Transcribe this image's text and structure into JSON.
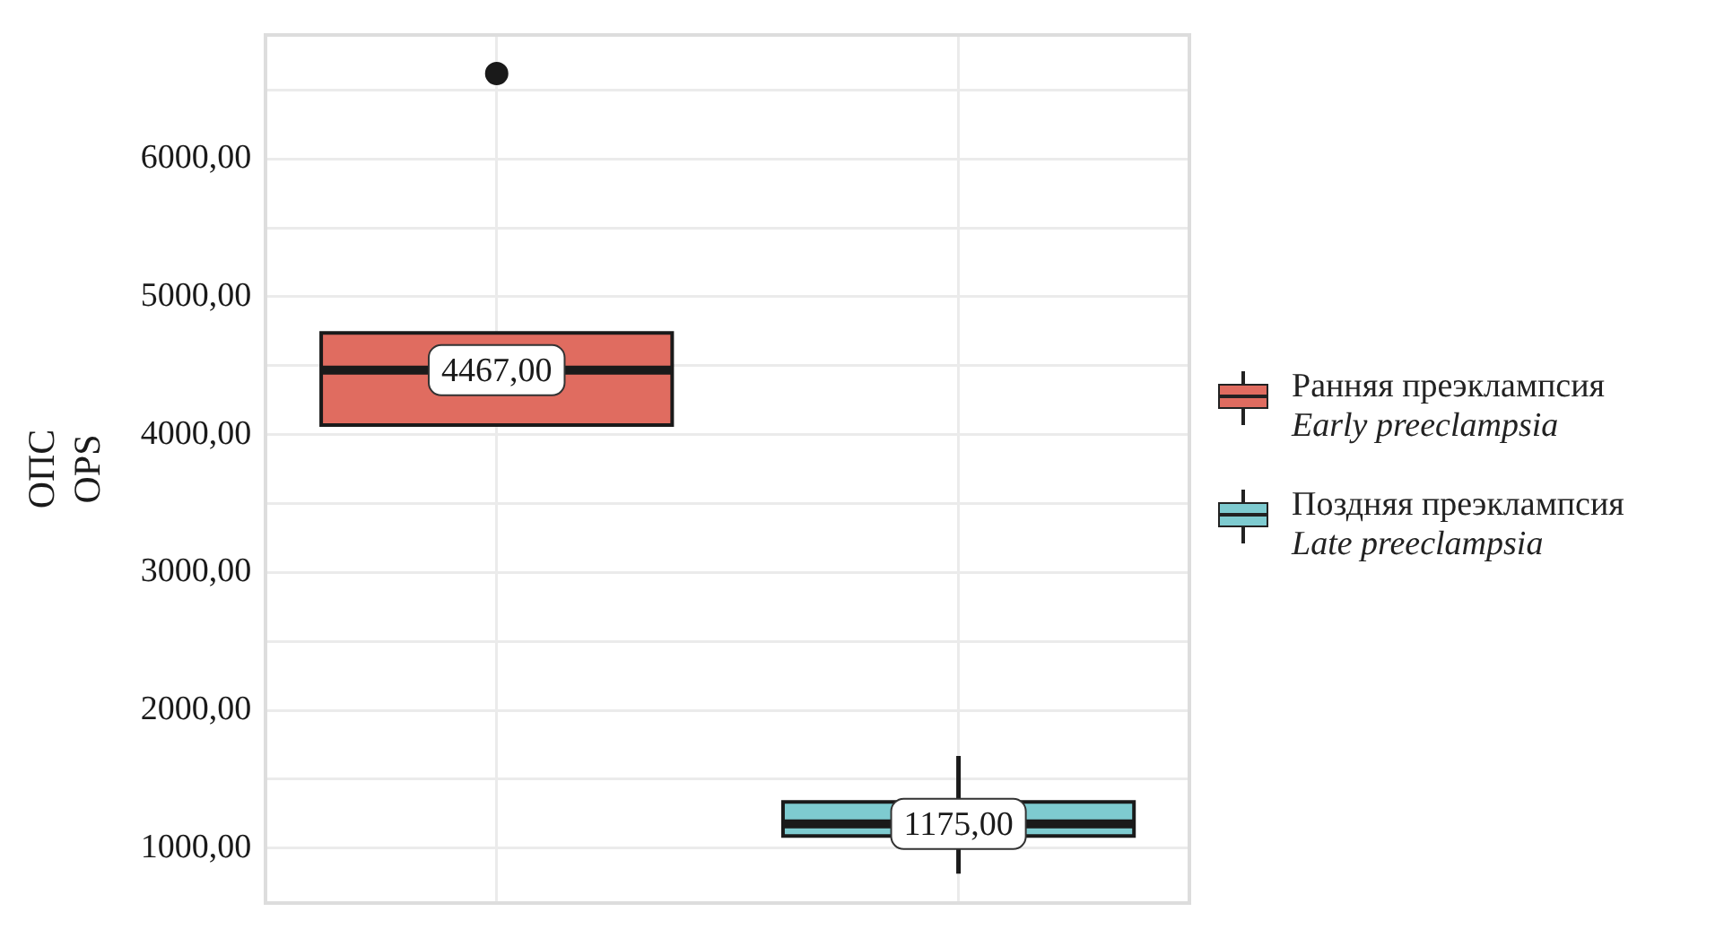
{
  "chart_data": {
    "type": "box",
    "ylabel": "ОПС\nOPS",
    "categories": [
      null,
      null
    ],
    "series": [
      {
        "name": "Ранняя преэклампсия\nEarly preeclampsia",
        "color": "#e06c60",
        "boxes": [
          {
            "low": 4069,
            "q1": 4069,
            "median": 4467,
            "q3": 4738,
            "high": 4738,
            "outliers": [
              6619
            ]
          },
          null
        ],
        "value_labels": [
          "4467,00",
          null
        ]
      },
      {
        "name": "Поздняя преэклампсия\nLate preeclampsia",
        "color": "#7ecbd0",
        "boxes": [
          null,
          {
            "low": 814,
            "q1": 1087,
            "median": 1175,
            "q3": 1334,
            "high": 1668
          }
        ],
        "value_labels": [
          null,
          "1175,00"
        ]
      }
    ],
    "ylim": [
      600,
      6900
    ],
    "yticks": [
      {
        "value": 1000,
        "label": "1000,00"
      },
      {
        "value": 1500,
        "label": null
      },
      {
        "value": 2000,
        "label": "2000,00"
      },
      {
        "value": 2500,
        "label": null
      },
      {
        "value": 3000,
        "label": "3000,00"
      },
      {
        "value": 3500,
        "label": null
      },
      {
        "value": 4000,
        "label": "4000,00"
      },
      {
        "value": 4500,
        "label": null
      },
      {
        "value": 5000,
        "label": "5000,00"
      },
      {
        "value": 5500,
        "label": null
      },
      {
        "value": 6000,
        "label": "6000,00"
      },
      {
        "value": 6500,
        "label": null
      }
    ],
    "tick_labels": "y",
    "grid": true,
    "legend": "right"
  }
}
